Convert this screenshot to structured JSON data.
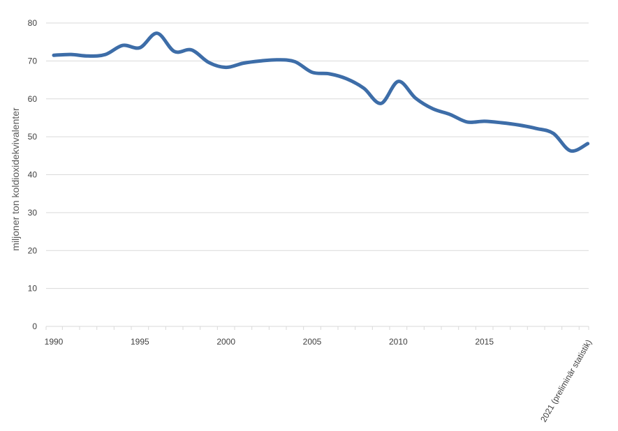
{
  "chart_data": {
    "type": "line",
    "ylabel": "miljoner ton koldioxidekvivalenter",
    "ylim": [
      0,
      80
    ],
    "yticks": [
      "0",
      "10",
      "20",
      "30",
      "40",
      "50",
      "60",
      "70",
      "80"
    ],
    "x": [
      "1990",
      "1991",
      "1992",
      "1993",
      "1994",
      "1995",
      "1996",
      "1997",
      "1998",
      "1999",
      "2000",
      "2001",
      "2002",
      "2003",
      "2004",
      "2005",
      "2006",
      "2007",
      "2008",
      "2009",
      "2010",
      "2011",
      "2012",
      "2013",
      "2014",
      "2015",
      "2016",
      "2017",
      "2018",
      "2019",
      "2020",
      "2021 (preliminär statistik)"
    ],
    "xtick_labels": [
      "1990",
      "1995",
      "2000",
      "2005",
      "2010",
      "2015",
      "2021 (preliminär statistik)"
    ],
    "series": [
      {
        "values": [
          71.5,
          71.7,
          71.3,
          71.7,
          74.1,
          73.5,
          77.3,
          72.5,
          72.9,
          69.6,
          68.3,
          69.4,
          70.0,
          70.3,
          69.8,
          67.0,
          66.6,
          65.3,
          62.8,
          58.8,
          64.6,
          60.2,
          57.4,
          55.9,
          53.9,
          54.1,
          53.7,
          53.1,
          52.2,
          50.9,
          46.3,
          48.2
        ],
        "color": "#3D6DA8"
      }
    ],
    "grid": true,
    "gridline_color": "#D9D9D9"
  }
}
